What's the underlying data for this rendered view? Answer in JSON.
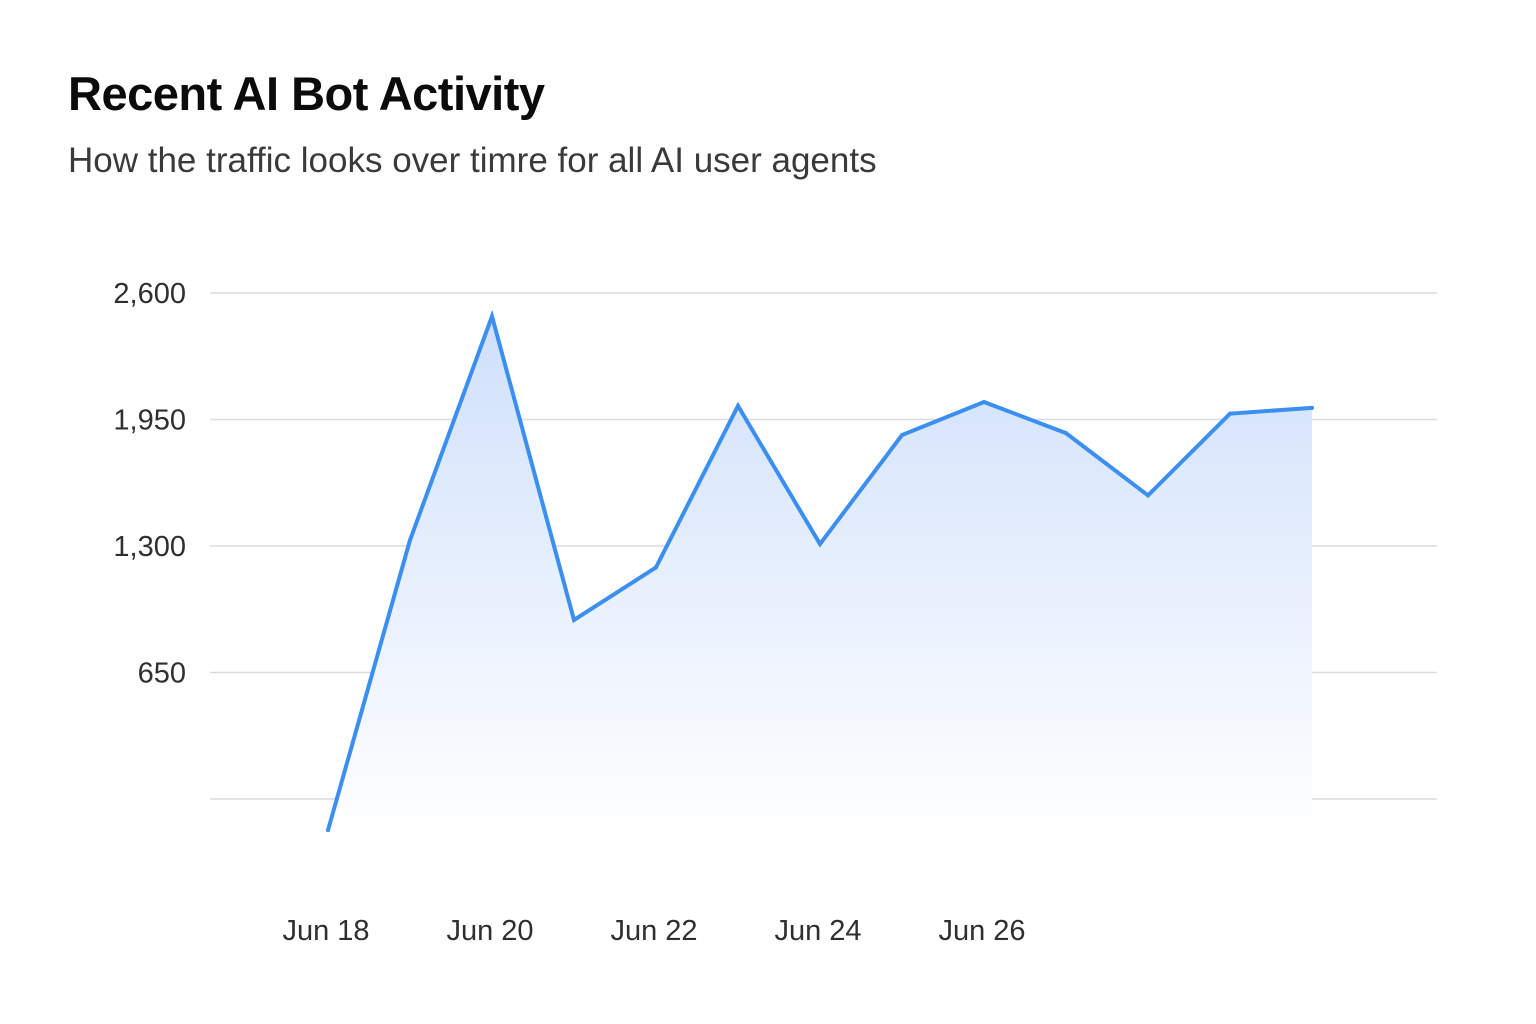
{
  "title": "Recent AI Bot Activity",
  "subtitle": "How the traffic looks over timre for all AI user agents",
  "colors": {
    "line": "#3b8ff0",
    "fill_top": "#cfe0fb",
    "fill_bottom": "#ffffff",
    "grid": "#d9dce1"
  },
  "chart_data": {
    "type": "area",
    "title": "Recent AI Bot Activity",
    "subtitle": "How the traffic looks over timre for all AI user agents",
    "xlabel": "",
    "ylabel": "",
    "x_tick_labels": [
      "Jun 18",
      "Jun 20",
      "Jun 22",
      "Jun 24",
      "Jun 26"
    ],
    "y_tick_labels": [
      "2,600",
      "1,950",
      "1,300",
      "650"
    ],
    "y_ticks": [
      2600,
      1950,
      1300,
      650,
      0
    ],
    "ylim": [
      0,
      2600
    ],
    "grid": true,
    "legend": "none",
    "series": [
      {
        "x": [
          "Jun 18",
          "Jun 19",
          "Jun 20",
          "Jun 21",
          "Jun 22",
          "Jun 23",
          "Jun 24",
          "Jun 25",
          "Jun 26",
          "Jun 27",
          "Jun 28",
          "Jun 29",
          "Jun 30"
        ],
        "values": [
          -160,
          1330,
          2480,
          920,
          1190,
          2020,
          1310,
          1870,
          2040,
          1880,
          1560,
          1980,
          2010
        ]
      }
    ]
  }
}
